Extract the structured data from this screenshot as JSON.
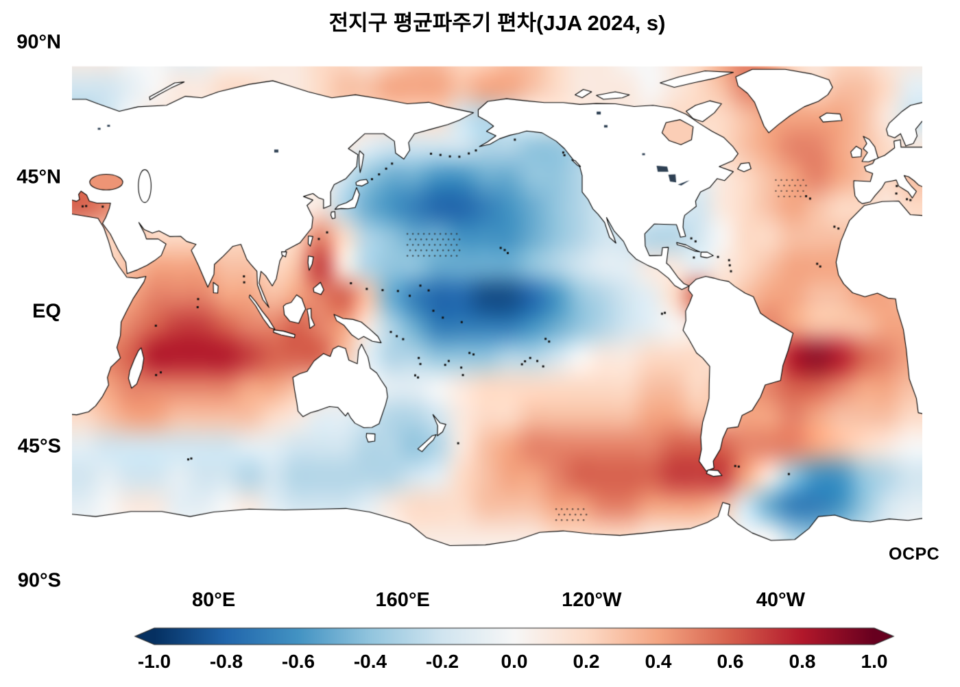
{
  "title": "전지구 평균파주기 편차(JJA 2024, s)",
  "watermark": "OCPC",
  "chart_data": {
    "type": "heatmap",
    "title": "전지구 평균파주기 편차(JJA 2024, s)",
    "variable": "mean wave period anomaly",
    "season": "JJA 2024",
    "units": "s",
    "projection": "equirectangular, Pacific-centered",
    "lon_range": [
      20,
      380
    ],
    "lat_range": [
      -90,
      90
    ],
    "grid_on": false,
    "legend_position": "bottom colorbar",
    "yticks": [
      {
        "label": "90°N",
        "lat": 90
      },
      {
        "label": "45°N",
        "lat": 45
      },
      {
        "label": "EQ",
        "lat": 0
      },
      {
        "label": "45°S",
        "lat": -45
      },
      {
        "label": "90°S",
        "lat": -90
      }
    ],
    "xticks": [
      {
        "label": "80°E",
        "lon": 80
      },
      {
        "label": "160°E",
        "lon": 160
      },
      {
        "label": "120°W",
        "lon": 240
      },
      {
        "label": "40°W",
        "lon": 320
      }
    ],
    "colorbar": {
      "min": -1.0,
      "max": 1.0,
      "extend": "both",
      "ticks": [
        "-1.0",
        "-0.8",
        "-0.6",
        "-0.4",
        "-0.2",
        "0.0",
        "0.2",
        "0.4",
        "0.6",
        "0.8",
        "1.0"
      ]
    },
    "colormap": {
      "name": "RdBu_r",
      "stops": [
        [
          -1.0,
          "#053061"
        ],
        [
          -0.8,
          "#2166ac"
        ],
        [
          -0.6,
          "#4393c3"
        ],
        [
          -0.4,
          "#92c5de"
        ],
        [
          -0.2,
          "#d1e5f0"
        ],
        [
          0.0,
          "#f7f7f7"
        ],
        [
          0.2,
          "#fddbc7"
        ],
        [
          0.4,
          "#f4a582"
        ],
        [
          0.6,
          "#d6604d"
        ],
        [
          0.8,
          "#b2182b"
        ],
        [
          1.0,
          "#67001f"
        ]
      ]
    },
    "grid": {
      "lon_start": 25,
      "lon_step": 10,
      "lat_start": 85,
      "lat_step": -10,
      "values": [
        [
          0.1,
          0.1,
          0,
          0,
          -0.1,
          -0.1,
          0,
          0,
          0.1,
          0.1,
          0.2,
          0.2,
          0.1,
          0.2,
          0.3,
          0.3,
          0.2,
          0.2,
          0.3,
          0.3,
          0.2,
          0.1,
          0.1,
          0,
          0,
          0.1,
          0.2,
          0.4,
          0.5,
          0.4,
          0.2,
          0.1,
          0.2,
          0.2,
          0.1,
          0.1
        ],
        [
          -0.2,
          -0.2,
          -0.1,
          0,
          0.1,
          0.1,
          0.2,
          0.2,
          0.1,
          0.1,
          0.2,
          0.3,
          0.3,
          0.4,
          0.4,
          0.4,
          0.3,
          0.4,
          0.4,
          0.3,
          0.2,
          0.1,
          0.1,
          0.1,
          0,
          0.1,
          0.2,
          0.3,
          0.5,
          0.5,
          0.3,
          0.2,
          0.3,
          0.3,
          0.2,
          -0.1
        ],
        [
          -0.3,
          -0.2,
          0,
          0.1,
          0.1,
          0.1,
          0.1,
          0.1,
          0.1,
          0.1,
          0.2,
          0.2,
          0.2,
          0.2,
          0.2,
          0.2,
          -0.2,
          -0.3,
          -0.2,
          0,
          0.1,
          0.1,
          0.1,
          0.1,
          0.1,
          0.2,
          0.2,
          0.2,
          0.3,
          0.4,
          0.4,
          0.4,
          0.4,
          0.3,
          0.1,
          -0.2
        ],
        [
          -0.1,
          0,
          0.1,
          0.1,
          0.1,
          0.1,
          0.1,
          0.1,
          0.1,
          0.1,
          0.1,
          0.1,
          -0.1,
          -0.2,
          -0.2,
          -0.2,
          -0.2,
          -0.3,
          -0.3,
          -0.4,
          -0.4,
          -0.3,
          0,
          0.1,
          0.2,
          0.2,
          0.1,
          0.2,
          0.3,
          0.4,
          0.5,
          0.5,
          0.4,
          0.3,
          0.2,
          0.1
        ],
        [
          0.5,
          0.4,
          0.2,
          0.1,
          0.1,
          0.1,
          0.1,
          0.1,
          0.1,
          0.1,
          0.1,
          -0.2,
          -0.4,
          -0.5,
          -0.5,
          -0.6,
          -0.6,
          -0.5,
          -0.5,
          -0.4,
          -0.4,
          -0.3,
          -0.2,
          0,
          0.1,
          0.1,
          -0.1,
          0.1,
          0.2,
          0.3,
          0.4,
          0.5,
          0.4,
          0.3,
          0.2,
          0.3
        ],
        [
          0.6,
          0.5,
          0.2,
          0.1,
          0.1,
          0.1,
          0.1,
          0.1,
          0,
          0,
          0.1,
          -0.3,
          -0.5,
          -0.6,
          -0.7,
          -0.8,
          -0.8,
          -0.7,
          -0.6,
          -0.5,
          -0.4,
          -0.3,
          -0.2,
          -0.1,
          0,
          -0.1,
          -0.2,
          0.1,
          0.2,
          0.3,
          0.4,
          0.3,
          0.2,
          0.2,
          0.1,
          0.2
        ],
        [
          0.2,
          0.2,
          0.3,
          0.2,
          0.2,
          0.2,
          0.2,
          0.2,
          0.1,
          0.2,
          0.5,
          0.2,
          -0.3,
          -0.4,
          -0.5,
          -0.5,
          -0.6,
          -0.6,
          -0.6,
          -0.5,
          -0.4,
          -0.3,
          -0.2,
          -0.2,
          -0.3,
          -0.3,
          -0.2,
          0,
          0.2,
          0.2,
          0.3,
          0.3,
          0.3,
          0.3,
          0.2,
          0.2
        ],
        [
          0.2,
          0.2,
          0.3,
          0.4,
          0.4,
          0.4,
          0.3,
          0.3,
          0.2,
          0.3,
          0.7,
          0.1,
          -0.3,
          -0.4,
          -0.4,
          -0.5,
          -0.5,
          -0.5,
          -0.5,
          -0.4,
          -0.3,
          -0.2,
          -0.1,
          -0.1,
          0.1,
          0.1,
          -0.1,
          0.1,
          0.2,
          0.3,
          0.4,
          0.4,
          0.4,
          0.4,
          0.3,
          0.3
        ],
        [
          0.2,
          0.3,
          0.4,
          0.5,
          0.5,
          0.5,
          0.4,
          0.4,
          0.3,
          0.4,
          0.5,
          0.6,
          0.3,
          -0.5,
          -0.7,
          -0.8,
          -0.8,
          -0.9,
          -0.9,
          -0.8,
          -0.6,
          -0.4,
          -0.3,
          -0.2,
          -0.1,
          0.2,
          0.6,
          0.2,
          0.3,
          0.4,
          0.4,
          0.3,
          0.3,
          0.4,
          0.4,
          0.3
        ],
        [
          0.3,
          0.4,
          0.5,
          0.6,
          0.7,
          0.7,
          0.6,
          0.5,
          0.5,
          0.6,
          0.5,
          0.4,
          0.1,
          -0.3,
          -0.5,
          -0.7,
          -0.7,
          -0.7,
          -0.7,
          -0.6,
          -0.5,
          -0.4,
          -0.3,
          -0.2,
          -0.1,
          0,
          0.1,
          0.2,
          0.4,
          0.5,
          0.4,
          0.3,
          0.3,
          0.3,
          0.4,
          0.4
        ],
        [
          0.4,
          0.5,
          0.6,
          0.8,
          0.8,
          0.8,
          0.8,
          0.7,
          0.6,
          0.6,
          0.6,
          0.3,
          -0.1,
          -0.3,
          -0.3,
          -0.4,
          -0.4,
          -0.4,
          -0.3,
          -0.3,
          -0.2,
          0,
          0.1,
          0.1,
          0.2,
          0.2,
          0.2,
          0.1,
          0.2,
          0.4,
          0.8,
          0.9,
          0.8,
          0.6,
          0.5,
          0.4
        ],
        [
          0.3,
          0.4,
          0.5,
          0.5,
          0.5,
          0.5,
          0.5,
          0.4,
          0.4,
          0.3,
          0.2,
          0.1,
          0,
          -0.1,
          -0.1,
          0,
          0.1,
          0.2,
          0.2,
          0.2,
          0.2,
          0.2,
          0.2,
          0.2,
          0.3,
          0.3,
          0.2,
          0.3,
          0.4,
          0.5,
          0.6,
          0.6,
          0.5,
          0.4,
          0.4,
          0.3
        ],
        [
          0.2,
          0.3,
          0.4,
          0.4,
          0.3,
          0.3,
          0.3,
          0.3,
          0.2,
          0.1,
          -0.1,
          -0.1,
          -0.2,
          -0.3,
          -0.3,
          -0.2,
          0.1,
          0.2,
          0.2,
          0.3,
          0.3,
          0.3,
          0.3,
          0.3,
          0.4,
          0.4,
          0.3,
          0.3,
          0.4,
          0.4,
          0.5,
          0.4,
          0.3,
          0.3,
          0.3,
          0.2
        ],
        [
          -0.1,
          -0.2,
          -0.2,
          -0.2,
          -0.2,
          -0.2,
          -0.2,
          -0.1,
          -0.1,
          -0.2,
          -0.2,
          -0.2,
          -0.3,
          -0.3,
          -0.4,
          -0.3,
          0.1,
          0.3,
          0.4,
          0.5,
          0.5,
          0.5,
          0.5,
          0.5,
          0.5,
          0.6,
          0.6,
          0.6,
          0.5,
          0.5,
          0.5,
          0.4,
          0.3,
          0.2,
          0.1,
          0
        ],
        [
          -0.2,
          -0.1,
          -0.2,
          -0.2,
          -0.1,
          -0.2,
          -0.2,
          -0.3,
          -0.2,
          -0.3,
          -0.3,
          -0.3,
          -0.3,
          -0.3,
          -0.2,
          -0.1,
          0.2,
          0.3,
          0.4,
          0.4,
          0.5,
          0.6,
          0.6,
          0.6,
          0.6,
          0.7,
          0.7,
          0.7,
          0.4,
          0.1,
          -0.4,
          -0.6,
          -0.6,
          -0.4,
          -0.3,
          -0.2
        ],
        [
          -0.1,
          0,
          0.1,
          0.1,
          -0.1,
          -0.1,
          0,
          0.1,
          -0.1,
          -0.2,
          -0.2,
          -0.2,
          -0.1,
          0.1,
          0.2,
          0.2,
          0.2,
          0.3,
          0.3,
          0.3,
          0.4,
          0.4,
          0.5,
          0.5,
          0.4,
          0.4,
          0.4,
          0.3,
          -0.2,
          -0.5,
          -0.7,
          -0.7,
          -0.6,
          -0.4,
          -0.2,
          -0.1
        ],
        [
          0,
          0,
          0,
          0,
          0,
          0,
          0,
          0,
          0,
          0,
          0,
          0,
          0,
          0,
          0.1,
          0.1,
          0.1,
          0.1,
          0.1,
          0.1,
          0.2,
          0.2,
          0.2,
          0.2,
          0.1,
          0.1,
          0.1,
          0.1,
          0,
          0,
          -0.3,
          -0.4,
          -0.3,
          -0.2,
          -0.1,
          0
        ],
        [
          0,
          0,
          0,
          0,
          0,
          0,
          0,
          0,
          0,
          0,
          0,
          0,
          0,
          0,
          0,
          0,
          0,
          0,
          0,
          0,
          0,
          0,
          0,
          0,
          0,
          0,
          0,
          0,
          0,
          0,
          0,
          0,
          0,
          0,
          0,
          0
        ]
      ]
    },
    "stipple_regions": [
      {
        "lon": [
          162,
          184
        ],
        "lat": [
          17,
          26
        ]
      },
      {
        "lon": [
          318,
          331
        ],
        "lat": [
          37,
          44
        ]
      },
      {
        "lon": [
          225,
          238
        ],
        "lat": [
          -70,
          -66
        ]
      }
    ]
  }
}
